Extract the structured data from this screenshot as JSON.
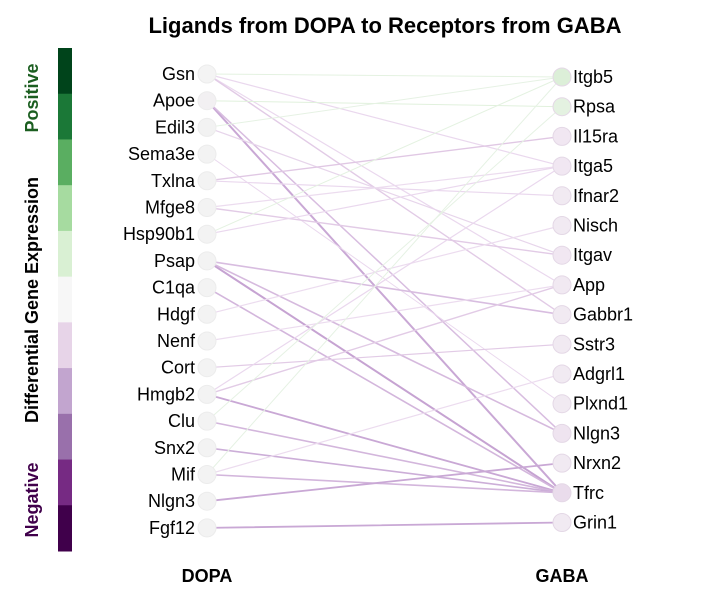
{
  "title": "Ligands from DOPA to Receptors from GABA",
  "left_axis_label": "DOPA",
  "right_axis_label": "GABA",
  "colorbar": {
    "label_positive": "Positive",
    "label_middle": "Differential Gene Expression",
    "label_negative": "Negative",
    "positive_color": "#1b5e20",
    "negative_color": "#40004b",
    "swatches": [
      "#00441b",
      "#1b7837",
      "#5aae61",
      "#a6dba0",
      "#d9f0d3",
      "#f7f7f7",
      "#e7d4e8",
      "#c2a5cf",
      "#9970ab",
      "#762a83",
      "#40004b"
    ]
  },
  "ligands": [
    {
      "name": "Gsn",
      "color": "#f4f4f4"
    },
    {
      "name": "Apoe",
      "color": "#f2f0f2"
    },
    {
      "name": "Edil3",
      "color": "#f2f2f2"
    },
    {
      "name": "Sema3e",
      "color": "#f3f3f3"
    },
    {
      "name": "Txlna",
      "color": "#f3f3f3"
    },
    {
      "name": "Mfge8",
      "color": "#f3f3f3"
    },
    {
      "name": "Hsp90b1",
      "color": "#f3f3f3"
    },
    {
      "name": "Psap",
      "color": "#f3f3f3"
    },
    {
      "name": "C1qa",
      "color": "#f3f3f3"
    },
    {
      "name": "Hdgf",
      "color": "#f3f3f3"
    },
    {
      "name": "Nenf",
      "color": "#f3f3f3"
    },
    {
      "name": "Cort",
      "color": "#f3f3f3"
    },
    {
      "name": "Hmgb2",
      "color": "#f3f3f3"
    },
    {
      "name": "Clu",
      "color": "#f3f3f3"
    },
    {
      "name": "Snx2",
      "color": "#f3f3f3"
    },
    {
      "name": "Mif",
      "color": "#f3f3f3"
    },
    {
      "name": "Nlgn3",
      "color": "#f3f3f3"
    },
    {
      "name": "Fgf12",
      "color": "#f3f3f3"
    }
  ],
  "receptors": [
    {
      "name": "Itgb5",
      "color": "#dcefd8"
    },
    {
      "name": "Rpsa",
      "color": "#e4f2e1"
    },
    {
      "name": "Il15ra",
      "color": "#f1e7f2"
    },
    {
      "name": "Itga5",
      "color": "#f1e7f2"
    },
    {
      "name": "Ifnar2",
      "color": "#f1eaf2"
    },
    {
      "name": "Nisch",
      "color": "#f1eaf2"
    },
    {
      "name": "Itgav",
      "color": "#f1e7f2"
    },
    {
      "name": "App",
      "color": "#f1e9f2"
    },
    {
      "name": "Gabbr1",
      "color": "#f1eaf2"
    },
    {
      "name": "Sstr3",
      "color": "#f1eaf2"
    },
    {
      "name": "Adgrl1",
      "color": "#f1eaf2"
    },
    {
      "name": "Plxnd1",
      "color": "#f1eaf2"
    },
    {
      "name": "Nlgn3",
      "color": "#efe4f0"
    },
    {
      "name": "Nrxn2",
      "color": "#f1eaf2"
    },
    {
      "name": "Tfrc",
      "color": "#eadcec"
    },
    {
      "name": "Grin1",
      "color": "#f1eaf2"
    }
  ],
  "edges": [
    {
      "from": "Gsn",
      "to": "Itgb5",
      "color": "#e4f2e1",
      "weight": 1
    },
    {
      "from": "Gsn",
      "to": "Itga5",
      "color": "#ead8ee",
      "weight": 1.2
    },
    {
      "from": "Gsn",
      "to": "App",
      "color": "#ead8ee",
      "weight": 1.2
    },
    {
      "from": "Gsn",
      "to": "Gabbr1",
      "color": "#e2cbe6",
      "weight": 1.4
    },
    {
      "from": "Apoe",
      "to": "Rpsa",
      "color": "#e1f1dd",
      "weight": 1
    },
    {
      "from": "Apoe",
      "to": "Tfrc",
      "color": "#c9a8d5",
      "weight": 2
    },
    {
      "from": "Apoe",
      "to": "Nlgn3",
      "color": "#d8bde0",
      "weight": 1.5
    },
    {
      "from": "Edil3",
      "to": "Itgb5",
      "color": "#e6f2e4",
      "weight": 1
    },
    {
      "from": "Edil3",
      "to": "Itgav",
      "color": "#e7d5eb",
      "weight": 1.2
    },
    {
      "from": "Sema3e",
      "to": "Plxnd1",
      "color": "#ead8ee",
      "weight": 1
    },
    {
      "from": "Txlna",
      "to": "Il15ra",
      "color": "#e0c8e4",
      "weight": 1.4
    },
    {
      "from": "Txlna",
      "to": "Ifnar2",
      "color": "#ead8ee",
      "weight": 1.2
    },
    {
      "from": "Mfge8",
      "to": "Itgav",
      "color": "#e2cbe6",
      "weight": 1.4
    },
    {
      "from": "Mfge8",
      "to": "Itga5",
      "color": "#ecdcef",
      "weight": 1.2
    },
    {
      "from": "Hsp90b1",
      "to": "Itgb5",
      "color": "#e4f2e1",
      "weight": 1
    },
    {
      "from": "Hsp90b1",
      "to": "Itga5",
      "color": "#ead8ee",
      "weight": 1.2
    },
    {
      "from": "Psap",
      "to": "Gabbr1",
      "color": "#d8bde0",
      "weight": 1.6
    },
    {
      "from": "Psap",
      "to": "Tfrc",
      "color": "#c6a3d2",
      "weight": 2
    },
    {
      "from": "Psap",
      "to": "Nlgn3",
      "color": "#d6bade",
      "weight": 1.6
    },
    {
      "from": "C1qa",
      "to": "Tfrc",
      "color": "#d3b6dc",
      "weight": 1.6
    },
    {
      "from": "Hdgf",
      "to": "Nisch",
      "color": "#ecdcef",
      "weight": 1.2
    },
    {
      "from": "Nenf",
      "to": "App",
      "color": "#ecdcef",
      "weight": 1.2
    },
    {
      "from": "Cort",
      "to": "Sstr3",
      "color": "#e2cbe6",
      "weight": 1.2
    },
    {
      "from": "Hmgb2",
      "to": "App",
      "color": "#e2cbe6",
      "weight": 1.4
    },
    {
      "from": "Hmgb2",
      "to": "Itga5",
      "color": "#ead8ee",
      "weight": 1.2
    },
    {
      "from": "Hmgb2",
      "to": "Tfrc",
      "color": "#c9a8d5",
      "weight": 1.8
    },
    {
      "from": "Clu",
      "to": "Rpsa",
      "color": "#e6f2e4",
      "weight": 1
    },
    {
      "from": "Clu",
      "to": "Tfrc",
      "color": "#d3b6dc",
      "weight": 1.6
    },
    {
      "from": "Snx2",
      "to": "Tfrc",
      "color": "#ccaed8",
      "weight": 1.6
    },
    {
      "from": "Mif",
      "to": "Adgrl1",
      "color": "#ecdcef",
      "weight": 1.2
    },
    {
      "from": "Mif",
      "to": "Itgb5",
      "color": "#e6f2e4",
      "weight": 1
    },
    {
      "from": "Mif",
      "to": "Tfrc",
      "color": "#d3b6dc",
      "weight": 1.6
    },
    {
      "from": "Nlgn3",
      "to": "Nrxn2",
      "color": "#c9a8d5",
      "weight": 1.8
    },
    {
      "from": "Fgf12",
      "to": "Grin1",
      "color": "#c9a8d5",
      "weight": 1.8
    }
  ]
}
